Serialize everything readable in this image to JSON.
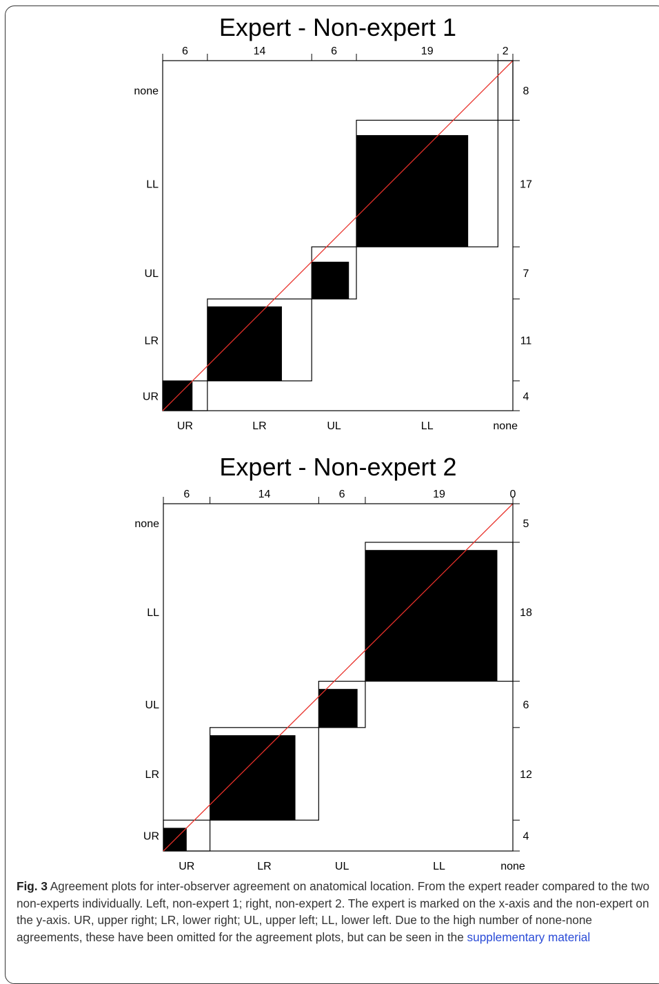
{
  "chart_data": [
    {
      "type": "agreement-plot",
      "title": "Expert  -  Non-expert 1",
      "categories": [
        "UR",
        "LR",
        "UL",
        "LL",
        "none"
      ],
      "x_marginals": [
        6,
        14,
        6,
        19,
        2
      ],
      "y_marginals": [
        4,
        11,
        7,
        17,
        8
      ],
      "agreements": [
        4,
        10,
        5,
        15,
        0
      ]
    },
    {
      "type": "agreement-plot",
      "title": "Expert  -  Non-expert 2",
      "categories": [
        "UR",
        "LR",
        "UL",
        "LL",
        "none"
      ],
      "x_marginals": [
        6,
        14,
        6,
        19,
        0
      ],
      "y_marginals": [
        4,
        12,
        6,
        18,
        5
      ],
      "agreements": [
        3,
        11,
        5,
        17,
        0
      ]
    }
  ],
  "caption": {
    "label": "Fig. 3",
    "text": " Agreement plots for inter-observer agreement on anatomical location. From the expert reader compared to the two non-experts individually. Left, non-expert 1; right, non-expert 2. The expert is marked on the x-axis and the non-expert on the y-axis. UR, upper right; LR, lower right; UL, upper left; LL, lower left. Due to the high number of none-none agreements, these have been omitted for the agreement plots, but can be seen in the ",
    "link_text": "supplementary material"
  }
}
